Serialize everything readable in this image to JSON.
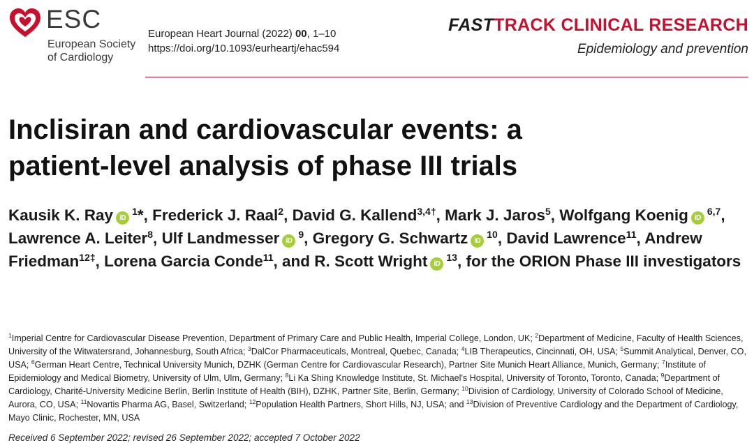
{
  "header": {
    "logo_abbr": "ESC",
    "logo_line1": "European Society",
    "logo_line2": "of Cardiology",
    "journal_prefix": "European Heart Journal (2022) ",
    "journal_volume": "00",
    "journal_pages": ", 1–10",
    "doi": "https://doi.org/10.1093/eurheartj/ehac594",
    "fast_label": "FAST",
    "track_label": "TRACK CLINICAL RESEARCH",
    "section": "Epidemiology and prevention",
    "accent_color": "#c8102e",
    "orcid_color": "#a6ce39"
  },
  "article": {
    "title_line1": "Inclisiran and cardiovascular events: a",
    "title_line2": "patient-level analysis of phase III trials"
  },
  "authors": [
    {
      "name": "Kausik K. Ray",
      "orcid": true,
      "sup": "1",
      "mark": "*",
      "sep": ", "
    },
    {
      "name": "Frederick J. Raal",
      "orcid": false,
      "sup": "2",
      "mark": "",
      "sep": ", "
    },
    {
      "name": "David G. Kallend",
      "orcid": false,
      "sup": "3,4†",
      "mark": "",
      "sep": ", "
    },
    {
      "name": "Mark J. Jaros",
      "orcid": false,
      "sup": "5",
      "mark": "",
      "sep": ", "
    },
    {
      "name": "Wolfgang Koenig",
      "orcid": true,
      "sup": "6,7",
      "mark": "",
      "sep": ", "
    },
    {
      "name": "Lawrence A. Leiter",
      "orcid": false,
      "sup": "8",
      "mark": "",
      "sep": ", "
    },
    {
      "name": "Ulf Landmesser",
      "orcid": true,
      "sup": "9",
      "mark": "",
      "sep": ", "
    },
    {
      "name": "Gregory G. Schwartz",
      "orcid": true,
      "sup": "10",
      "mark": "",
      "sep": ", "
    },
    {
      "name": "David Lawrence",
      "orcid": false,
      "sup": "11",
      "mark": "",
      "sep": ", "
    },
    {
      "name": "Andrew Friedman",
      "orcid": false,
      "sup": "12‡",
      "mark": "",
      "sep": ", "
    },
    {
      "name": "Lorena Garcia Conde",
      "orcid": false,
      "sup": "11",
      "mark": "",
      "sep": ", and "
    },
    {
      "name": "R. Scott Wright",
      "orcid": true,
      "sup": "13",
      "mark": "",
      "sep": ", "
    }
  ],
  "authors_suffix": "for the ORION Phase III investigators",
  "orcid_glyph": "iD",
  "affiliations": [
    {
      "sup": "1",
      "text": "Imperial Centre for Cardiovascular Disease Prevention, Department of Primary Care and Public Health, Imperial College, London, UK; "
    },
    {
      "sup": "2",
      "text": "Department of Medicine, Faculty of Health Sciences, University of the Witwatersrand, Johannesburg, South Africa; "
    },
    {
      "sup": "3",
      "text": "DalCor Pharmaceuticals, Montreal, Quebec, Canada; "
    },
    {
      "sup": "4",
      "text": "LIB Therapeutics, Cincinnati, OH, USA; "
    },
    {
      "sup": "5",
      "text": "Summit Analytical, Denver, CO, USA; "
    },
    {
      "sup": "6",
      "text": "German Heart Centre, Technical University Munich, DZHK (German Centre for Cardiovascular Research), Partner Site Munich Heart Alliance, Munich, Germany; "
    },
    {
      "sup": "7",
      "text": "Institute of Epidemiology and Medical Biometry, University of Ulm, Ulm, Germany; "
    },
    {
      "sup": "8",
      "text": "Li Ka Shing Knowledge Institute, St. Michael's Hospital, University of Toronto, Toronto, Canada; "
    },
    {
      "sup": "9",
      "text": "Department of Cardiology, Charité-University Medicine Berlin, Berlin Institute of Health (BIH), DZHK, Partner Site, Berlin, Germany; "
    },
    {
      "sup": "10",
      "text": "Division of Cardiology, University of Colorado School of Medicine, Aurora, CO, USA; "
    },
    {
      "sup": "11",
      "text": "Novartis Pharma AG, Basel, Switzerland; "
    },
    {
      "sup": "12",
      "text": "Population Health Partners, Short Hills, NJ, USA; and "
    },
    {
      "sup": "13",
      "text": "Division of Preventive Cardiology and the Department of Cardiology, Mayo Clinic, Rochester, MN, USA"
    }
  ],
  "received": "Received 6 September 2022; revised 26 September 2022; accepted 7 October 2022"
}
